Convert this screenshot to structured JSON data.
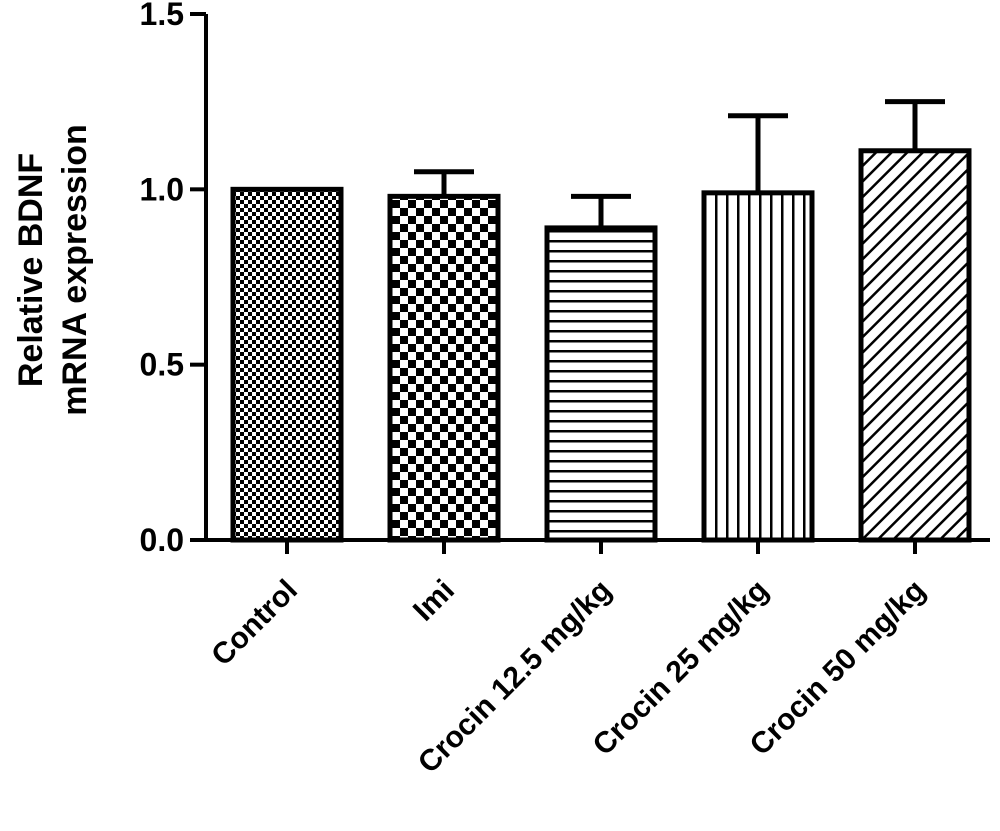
{
  "chart_data": {
    "type": "bar",
    "ylabel_line1": "Relative BDNF",
    "ylabel_line2": "mRNA expression",
    "xlabel": "",
    "ylim": [
      0,
      1.5
    ],
    "yticks": [
      "0.0",
      "0.5",
      "1.0",
      "1.5"
    ],
    "grid": false,
    "categories": [
      "Control",
      "Imi",
      "Crocin 12.5 mg/kg",
      "Crocin 25 mg/kg",
      "Crocin 50 mg/kg"
    ],
    "values": [
      1.0,
      0.98,
      0.89,
      0.99,
      1.11
    ],
    "error_upper": [
      0.0,
      0.07,
      0.09,
      0.22,
      0.14
    ],
    "fill_patterns": [
      "fine-checker",
      "coarse-checker",
      "horizontal-lines",
      "vertical-lines",
      "diagonal-lines"
    ],
    "colors": {
      "ink": "#000000",
      "background": "#ffffff"
    }
  }
}
